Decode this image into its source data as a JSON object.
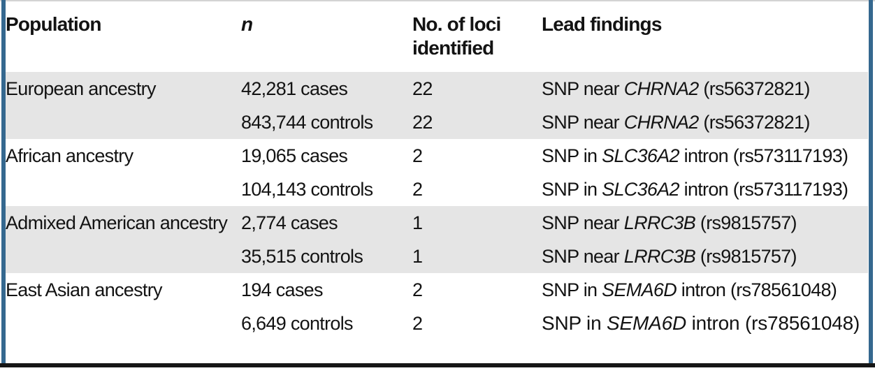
{
  "colors": {
    "border_blue": "#35688f",
    "band_gray": "#e5e5e5",
    "rule_black": "#161616",
    "text": "#131313"
  },
  "table": {
    "headers": {
      "population": "Population",
      "n": "n",
      "loci": "No. of loci identified",
      "findings": "Lead findings"
    },
    "groups": [
      {
        "population": "European ancestry",
        "rows": [
          {
            "n": "42,281 cases",
            "loci": "22",
            "finding_prefix": "SNP near ",
            "gene": "CHRNA2",
            "finding_suffix": " (rs56372821)"
          },
          {
            "n": "843,744 controls",
            "loci": "22",
            "finding_prefix": "SNP near ",
            "gene": "CHRNA2",
            "finding_suffix": " (rs56372821)"
          }
        ]
      },
      {
        "population": "African ancestry",
        "rows": [
          {
            "n": "19,065 cases",
            "loci": "2",
            "finding_prefix": "SNP in ",
            "gene": "SLC36A2",
            "finding_suffix": " intron (rs573117193)"
          },
          {
            "n": "104,143 controls",
            "loci": "2",
            "finding_prefix": "SNP in ",
            "gene": "SLC36A2",
            "finding_suffix": " intron (rs573117193)"
          }
        ]
      },
      {
        "population": "Admixed American ancestry",
        "rows": [
          {
            "n": "2,774 cases",
            "loci": "1",
            "finding_prefix": "SNP near ",
            "gene": "LRRC3B",
            "finding_suffix": " (rs9815757)"
          },
          {
            "n": "35,515 controls",
            "loci": "1",
            "finding_prefix": "SNP near ",
            "gene": "LRRC3B",
            "finding_suffix": " (rs9815757)"
          }
        ]
      },
      {
        "population": "East Asian ancestry",
        "rows": [
          {
            "n": "194 cases",
            "loci": "2",
            "finding_prefix": "SNP in ",
            "gene": "SEMA6D",
            "finding_suffix": " intron (rs78561048)"
          },
          {
            "n": "6,649 controls",
            "loci": "2",
            "finding_prefix": "SNP in ",
            "gene": "SEMA6D",
            "finding_suffix": " intron (rs78561048)"
          }
        ]
      }
    ]
  }
}
